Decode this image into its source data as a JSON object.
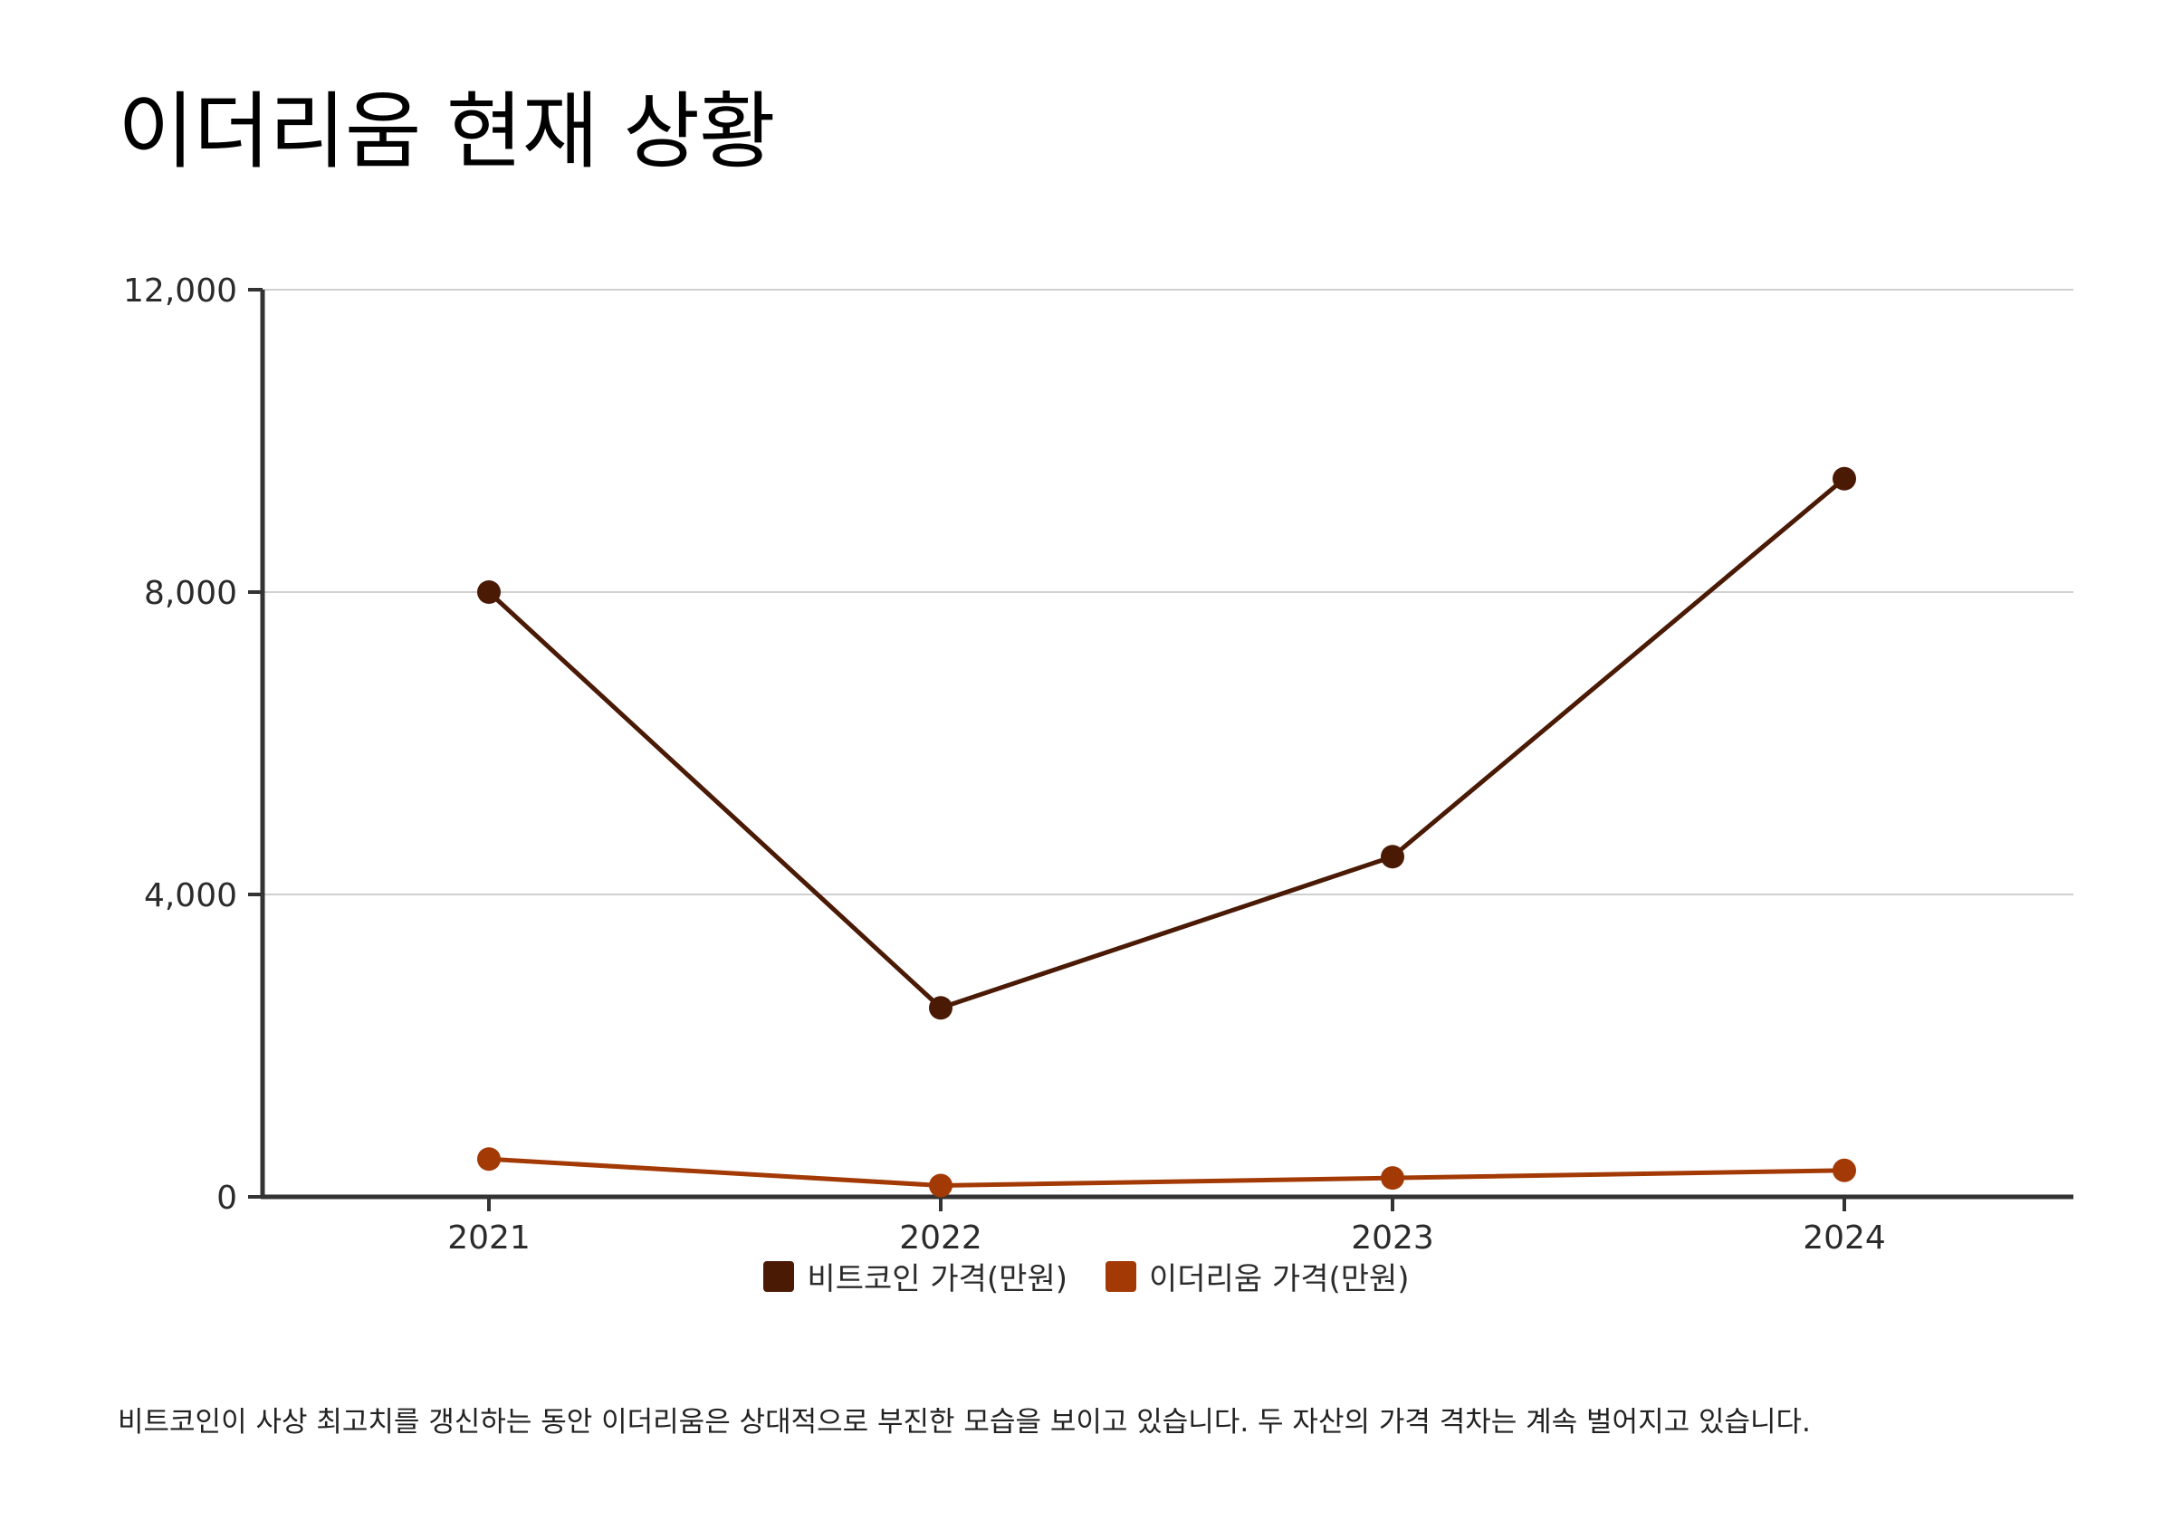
{
  "title": "이더리움 현재 상황",
  "caption": "비트코인이 사상 최고치를 갱신하는 동안 이더리움은 상대적으로 부진한 모습을 보이고 있습니다. 두 자산의 가격 격차는 계속 벌어지고 있습니다.",
  "colors": {
    "bitcoin": "#4a1a05",
    "ethereum": "#a33a05",
    "grid": "#d0d0d0",
    "axis": "#333333"
  },
  "legend": [
    {
      "label": "비트코인 가격(만원)",
      "color": "#4a1a05"
    },
    {
      "label": "이더리움 가격(만원)",
      "color": "#a33a05"
    }
  ],
  "chart_data": {
    "type": "line",
    "categories": [
      "2021",
      "2022",
      "2023",
      "2024"
    ],
    "series": [
      {
        "name": "비트코인 가격(만원)",
        "values": [
          8000,
          2500,
          4500,
          9500
        ]
      },
      {
        "name": "이더리움 가격(만원)",
        "values": [
          500,
          150,
          250,
          350
        ]
      }
    ],
    "ylim": [
      0,
      12000
    ],
    "yticks": [
      0,
      4000,
      8000,
      12000
    ],
    "ytick_labels": [
      "0",
      "4,000",
      "8,000",
      "12,000"
    ],
    "grid": true,
    "legend_position": "bottom"
  }
}
